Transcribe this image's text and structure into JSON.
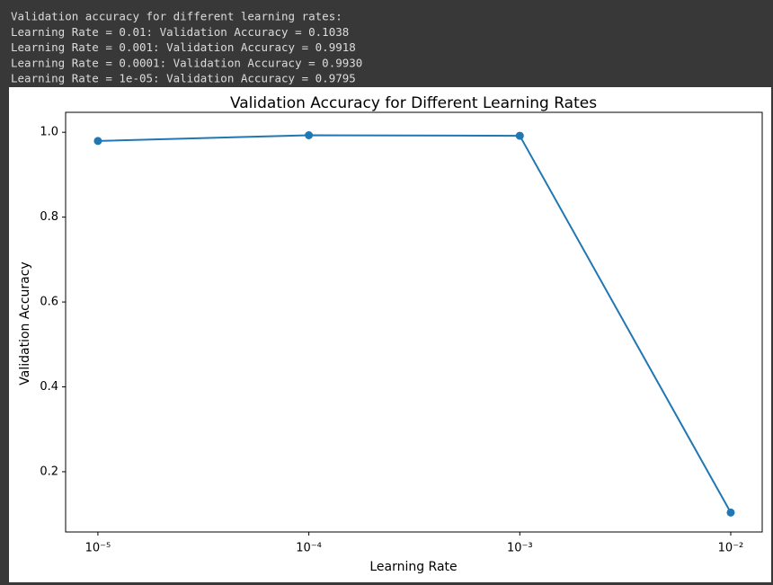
{
  "console": {
    "lines": [
      "Validation accuracy for different learning rates:",
      "Learning Rate = 0.01: Validation Accuracy = 0.1038",
      "Learning Rate = 0.001: Validation Accuracy = 0.9918",
      "Learning Rate = 0.0001: Validation Accuracy = 0.9930",
      "Learning Rate = 1e-05: Validation Accuracy = 0.9795"
    ]
  },
  "chart_data": {
    "type": "line",
    "title": "Validation Accuracy for Different Learning Rates",
    "x_label": "Learning Rate",
    "y_label": "Validation Accuracy",
    "x": [
      1e-05,
      0.0001,
      0.001,
      0.01
    ],
    "values": [
      0.9795,
      0.993,
      0.9918,
      0.1038
    ],
    "color": "#1f77b4",
    "marker": true,
    "xscale": "log",
    "xlim": [
      7.03e-06,
      0.0141
    ],
    "ylim": [
      0.058,
      1.047
    ],
    "xticks": [
      {
        "value": 1e-05,
        "label": "10⁻⁵"
      },
      {
        "value": 0.0001,
        "label": "10⁻⁴"
      },
      {
        "value": 0.001,
        "label": "10⁻³"
      },
      {
        "value": 0.01,
        "label": "10⁻²"
      }
    ],
    "yticks": [
      0.2,
      0.4,
      0.6,
      0.8,
      {
        "value": 1,
        "label": "1.0"
      }
    ]
  }
}
